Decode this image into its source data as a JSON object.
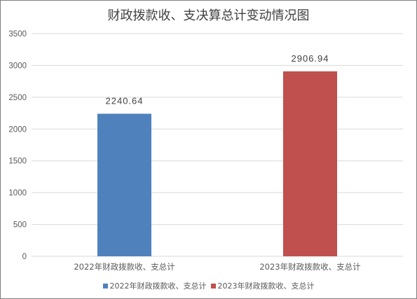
{
  "chart_data": {
    "type": "bar",
    "title": "财政拨款收、支决算总计变动情况图",
    "categories": [
      "2022年财政拨款收、支总计",
      "2023年财政拨款收、支总计"
    ],
    "values": [
      2240.64,
      2906.94
    ],
    "data_labels": [
      "2240.64",
      "2906.94"
    ],
    "colors": [
      "#4f81bd",
      "#c0504d"
    ],
    "ylim": [
      0,
      3500
    ],
    "yticks": [
      0,
      500,
      1000,
      1500,
      2000,
      2500,
      3000,
      3500
    ],
    "grid": true,
    "legend": {
      "placement": "bottom",
      "entries": [
        "2022年财政拨款收、支总计",
        "2023年财政拨款收、支总计"
      ]
    }
  }
}
